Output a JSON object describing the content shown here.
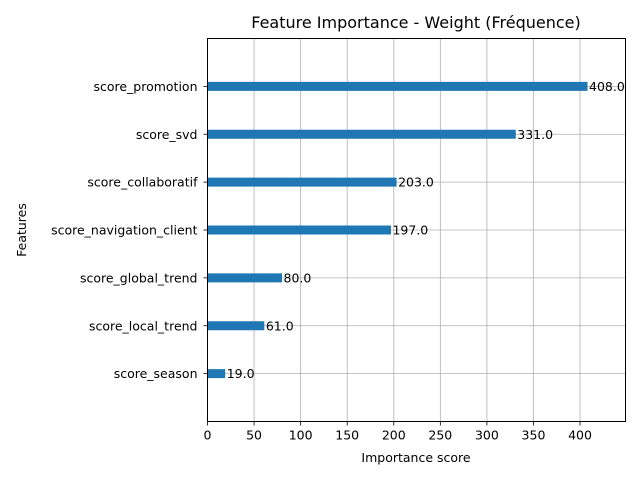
{
  "chart_data": {
    "type": "bar",
    "orientation": "horizontal",
    "title": "Feature Importance - Weight (Fréquence)",
    "xlabel": "Importance score",
    "ylabel": "Features",
    "categories": [
      "score_season",
      "score_local_trend",
      "score_global_trend",
      "score_navigation_client",
      "score_collaboratif",
      "score_svd",
      "score_promotion"
    ],
    "values": [
      19.0,
      61.0,
      80.0,
      197.0,
      203.0,
      331.0,
      408.0
    ],
    "data_labels": [
      "19.0",
      "61.0",
      "80.0",
      "197.0",
      "203.0",
      "331.0",
      "408.0"
    ],
    "xlim": [
      0,
      448.8
    ],
    "xticks": [
      0,
      50,
      100,
      150,
      200,
      250,
      300,
      350,
      400
    ],
    "grid": true,
    "bar_color": "#1f77b4"
  }
}
